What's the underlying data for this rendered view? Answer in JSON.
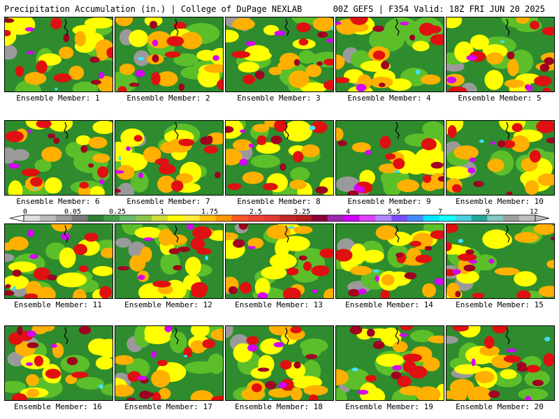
{
  "header": {
    "left": "Precipitation Accumulation (in.) | College of DuPage NEXLAB",
    "right": "00Z GEFS | F354 Valid: 18Z FRI JUN 20 2025"
  },
  "member_label_prefix": "Ensemble Member: ",
  "members": [
    1,
    2,
    3,
    4,
    5,
    6,
    7,
    8,
    9,
    10,
    11,
    12,
    13,
    14,
    15,
    16,
    17,
    18,
    19,
    20
  ],
  "colorbar": {
    "tick_labels": [
      "0",
      "0.05",
      "0.25",
      "1",
      "1.75",
      "2.5",
      "3.25",
      "4",
      "5.5",
      "7",
      "9",
      "12"
    ],
    "colors": [
      "#e0e0e0",
      "#bcbcbc",
      "#9a9a9a",
      "#7a7a7a",
      "#2e7d32",
      "#43a047",
      "#66bb6a",
      "#8bc34a",
      "#cddc39",
      "#ffff00",
      "#ffeb3b",
      "#ffc107",
      "#ff9800",
      "#ff5722",
      "#f44336",
      "#e53935",
      "#c62828",
      "#b71c1c",
      "#8e0038",
      "#9c27b0",
      "#d500f9",
      "#e040fb",
      "#b388ff",
      "#7c4dff",
      "#448aff",
      "#00e5ff",
      "#18ffff",
      "#4dd0e1",
      "#26a69a",
      "#80cbc4",
      "#9e9e9e",
      "#bdbdbd"
    ]
  },
  "map_palette": {
    "dry": "#9a9a9a",
    "green_dark": "#2e8b2e",
    "green": "#5cbf2a",
    "yellow": "#ffff00",
    "orange": "#ffb000",
    "red": "#e01010",
    "dark_red": "#a00020",
    "magenta": "#d500f9",
    "cyan": "#40e0ff"
  }
}
